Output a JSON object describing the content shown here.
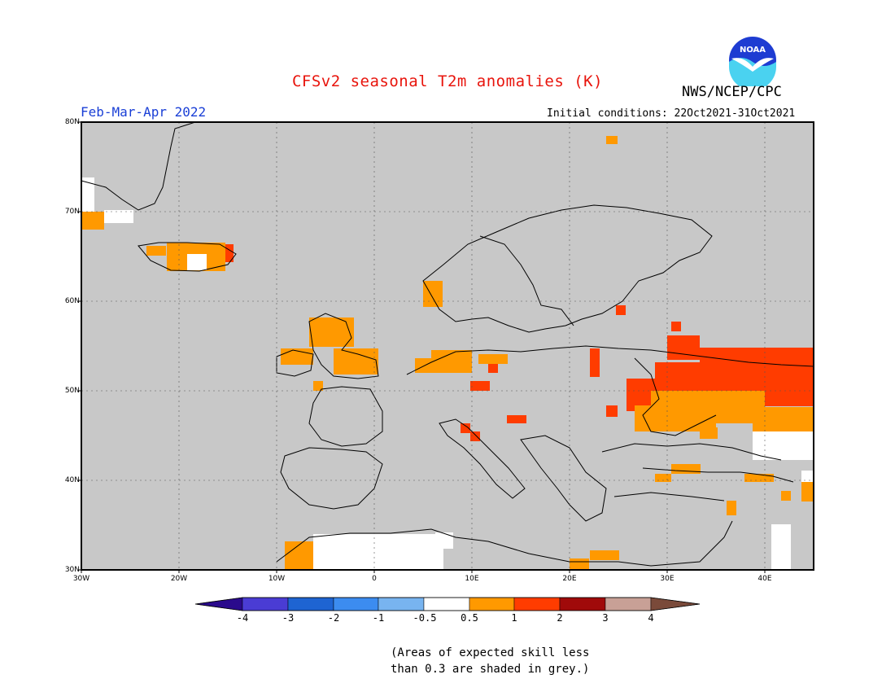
{
  "header": {
    "title": "CFSv2 seasonal T2m anomalies (K)",
    "agency": "NWS/NCEP/CPC",
    "logo_text": "NOAA",
    "period": "Feb-Mar-Apr 2022",
    "initial_conditions": "Initial conditions: 22Oct2021-31Oct2021"
  },
  "map": {
    "region": "Europe",
    "lon_range": [
      -30,
      45
    ],
    "lat_range": [
      30,
      80
    ],
    "lat_labels": [
      "80N",
      "70N",
      "60N",
      "50N",
      "40N",
      "30N"
    ],
    "lon_labels": [
      "30W",
      "20W",
      "10W",
      "0",
      "10E",
      "20E",
      "30E",
      "40E"
    ],
    "low_skill_color": "#c8c8c8",
    "anomaly_regions": [
      {
        "name": "western-russia",
        "category": "1 to 2",
        "color": "#ff3c00"
      },
      {
        "name": "ukraine",
        "category": "0.5 to 1",
        "color": "#ff9900"
      },
      {
        "name": "iceland",
        "category": "0.5 to 1",
        "color": "#ff9900"
      },
      {
        "name": "british-isles",
        "category": "0.5 to 1",
        "color": "#ff9900"
      },
      {
        "name": "north-africa",
        "category": "0.5 to 1",
        "color": "#ff9900"
      }
    ]
  },
  "colorbar": {
    "ticks": [
      "-4",
      "-3",
      "-2",
      "-1",
      "-0.5",
      "0.5",
      "1",
      "2",
      "3",
      "4"
    ],
    "colors": [
      "#2a0a8c",
      "#4a3cd4",
      "#1e64d2",
      "#3c8cf0",
      "#78b4f0",
      "#ffffff",
      "#ff9900",
      "#ff3c00",
      "#a00a0a",
      "#c8a096",
      "#7a4a3a"
    ]
  },
  "footnote": {
    "line1": "(Areas of expected skill less",
    "line2": "than 0.3 are shaded in grey.)"
  }
}
